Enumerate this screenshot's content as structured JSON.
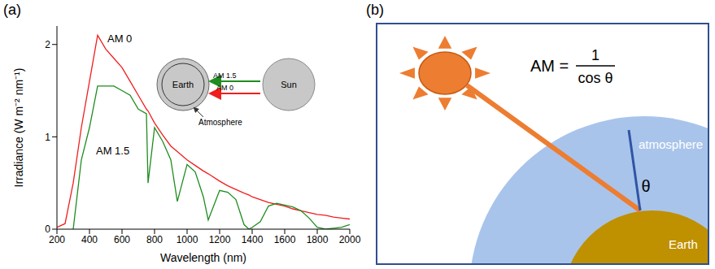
{
  "chart_data": {
    "type": "line",
    "x_label": "Wavelength (nm)",
    "y_label": "Irradiance (W m⁻² nm⁻¹)",
    "x": [
      200,
      250,
      300,
      350,
      400,
      450,
      500,
      550,
      600,
      650,
      700,
      750,
      760,
      800,
      850,
      900,
      940,
      1000,
      1050,
      1100,
      1130,
      1200,
      1250,
      1300,
      1350,
      1380,
      1400,
      1450,
      1500,
      1550,
      1600,
      1650,
      1700,
      1750,
      1800,
      1850,
      1900,
      1950,
      2000
    ],
    "series": [
      {
        "name": "AM 0",
        "color": "#f01e1e",
        "values": [
          0.02,
          0.06,
          0.5,
          1.1,
          1.6,
          2.1,
          1.95,
          1.85,
          1.75,
          1.6,
          1.45,
          1.3,
          1.28,
          1.15,
          1.02,
          0.9,
          0.84,
          0.75,
          0.69,
          0.63,
          0.6,
          0.52,
          0.47,
          0.43,
          0.39,
          0.37,
          0.35,
          0.32,
          0.29,
          0.27,
          0.25,
          0.22,
          0.2,
          0.18,
          0.16,
          0.15,
          0.13,
          0.12,
          0.11
        ]
      },
      {
        "name": "AM 1.5",
        "color": "#1f8c1f",
        "values": [
          null,
          null,
          0.0,
          0.75,
          1.1,
          1.55,
          1.55,
          1.55,
          1.5,
          1.45,
          1.3,
          1.25,
          0.5,
          1.1,
          0.95,
          0.75,
          0.3,
          0.7,
          0.62,
          0.35,
          0.1,
          0.42,
          0.4,
          0.32,
          0.05,
          0.0,
          0.02,
          0.08,
          0.25,
          0.28,
          0.26,
          0.24,
          0.2,
          0.12,
          0.02,
          0.0,
          0.01,
          0.02,
          0.05
        ]
      }
    ],
    "xlim": [
      200,
      2000
    ],
    "ylim": [
      0,
      2.2
    ],
    "xticks": [
      200,
      400,
      600,
      800,
      1000,
      1200,
      1400,
      1600,
      1800,
      2000
    ],
    "yticks": [
      0,
      1,
      2
    ],
    "grid": false
  },
  "panels": {
    "a": "(a)",
    "b": "(b)"
  },
  "inset": {
    "earth": "Earth",
    "sun": "Sun",
    "arrow_top": "AM 1.5",
    "arrow_bottom": "AM 0",
    "atmosphere": "Atmosphere"
  },
  "diagram": {
    "formula": {
      "lhs": "AM =",
      "numerator": "1",
      "denominator": "cos θ"
    },
    "angle_label": "θ",
    "atmosphere_label": "atmosphere",
    "earth_label": "Earth"
  }
}
